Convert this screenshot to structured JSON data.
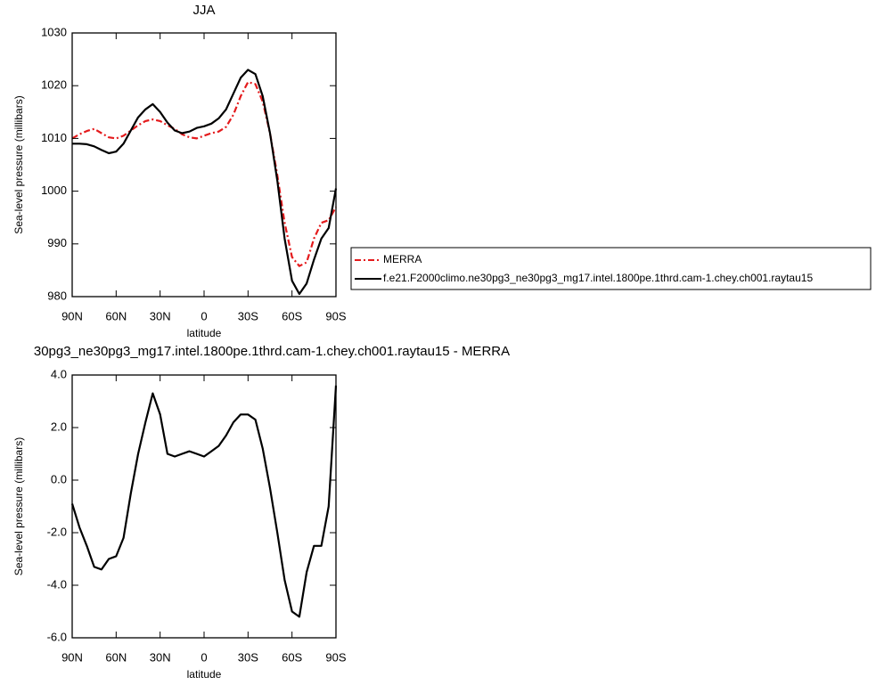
{
  "chart_data": [
    {
      "type": "line",
      "title": "JJA",
      "ylabel": "Sea-level pressure (millibars)",
      "xlabel": "latitude",
      "xlim": [
        90,
        -90
      ],
      "xticks": [
        {
          "value": 90,
          "label": "90N"
        },
        {
          "value": 60,
          "label": "60N"
        },
        {
          "value": 30,
          "label": "30N"
        },
        0,
        {
          "value": -30,
          "label": "30S"
        },
        {
          "value": -60,
          "label": "60S"
        },
        {
          "value": -90,
          "label": "90S"
        }
      ],
      "ylim": [
        980,
        1030
      ],
      "yticks": [
        980,
        990,
        1000,
        1010,
        1020,
        1030
      ],
      "legend": "right",
      "x": [
        90,
        85,
        80,
        75,
        70,
        65,
        60,
        55,
        50,
        45,
        40,
        35,
        30,
        25,
        20,
        15,
        10,
        5,
        0,
        -5,
        -10,
        -15,
        -20,
        -25,
        -30,
        -35,
        -40,
        -45,
        -50,
        -55,
        -60,
        -65,
        -70,
        -75,
        -80,
        -85,
        -90
      ],
      "series": [
        {
          "name": "MERRA",
          "color": "#e41a1c",
          "line_style": "dashed",
          "values": [
            1010,
            1010.8,
            1011.4,
            1011.8,
            1011,
            1010.2,
            1010,
            1010.5,
            1011.5,
            1012.5,
            1013.3,
            1013.6,
            1013.3,
            1012.5,
            1011.8,
            1010.8,
            1010.2,
            1010,
            1010.5,
            1011,
            1011.3,
            1012.2,
            1014.5,
            1018,
            1020.7,
            1020.3,
            1017,
            1011,
            1003,
            994,
            987.5,
            985.8,
            986.5,
            991,
            994,
            994.5,
            997
          ]
        },
        {
          "name": "f.e21.F2000climo.ne30pg3_ne30pg3_mg17.intel.1800pe.1thrd.cam-1.chey.ch001.raytau15",
          "color": "#000000",
          "line_style": "solid",
          "values": [
            1009,
            1009,
            1008.9,
            1008.5,
            1007.8,
            1007.2,
            1007.5,
            1009,
            1011.5,
            1014,
            1015.5,
            1016.5,
            1015,
            1013,
            1011.5,
            1011,
            1011.3,
            1012,
            1012.3,
            1012.8,
            1013.8,
            1015.5,
            1018.5,
            1021.5,
            1023,
            1022.2,
            1018,
            1011,
            1002,
            991,
            983,
            980.5,
            982.5,
            987,
            991,
            993,
            1000.5
          ]
        }
      ]
    },
    {
      "type": "line",
      "title": "30pg3_ne30pg3_mg17.intel.1800pe.1thrd.cam-1.chey.ch001.raytau15 - MERRA",
      "ylabel": "Sea-level pressure (millibars)",
      "xlabel": "latitude",
      "xlim": [
        90,
        -90
      ],
      "xticks": [
        {
          "value": 90,
          "label": "90N"
        },
        {
          "value": 60,
          "label": "60N"
        },
        {
          "value": 30,
          "label": "30N"
        },
        0,
        {
          "value": -30,
          "label": "30S"
        },
        {
          "value": -60,
          "label": "60S"
        },
        {
          "value": -90,
          "label": "90S"
        }
      ],
      "ylim": [
        -6,
        4
      ],
      "yticks": [
        {
          "value": -6,
          "label": "-6.0"
        },
        {
          "value": -4,
          "label": "-4.0"
        },
        {
          "value": -2,
          "label": "-2.0"
        },
        {
          "value": 0,
          "label": "0.0"
        },
        {
          "value": 2,
          "label": "2.0"
        },
        {
          "value": 4,
          "label": "4.0"
        }
      ],
      "x": [
        90,
        85,
        80,
        75,
        70,
        65,
        60,
        55,
        50,
        45,
        40,
        35,
        30,
        25,
        20,
        15,
        10,
        5,
        0,
        -5,
        -10,
        -15,
        -20,
        -25,
        -30,
        -35,
        -40,
        -45,
        -50,
        -55,
        -60,
        -65,
        -70,
        -75,
        -80,
        -85,
        -90
      ],
      "series": [
        {
          "color": "#000000",
          "line_style": "solid",
          "values": [
            -0.9,
            -1.8,
            -2.5,
            -3.3,
            -3.4,
            -3.0,
            -2.9,
            -2.2,
            -0.5,
            1.0,
            2.2,
            3.3,
            2.5,
            1.0,
            0.9,
            1.0,
            1.1,
            1.0,
            0.9,
            1.1,
            1.3,
            1.7,
            2.2,
            2.5,
            2.5,
            2.3,
            1.2,
            -0.3,
            -2.0,
            -3.8,
            -5.0,
            -5.2,
            -3.5,
            -2.5,
            -2.5,
            -1.0,
            3.6
          ]
        }
      ]
    }
  ]
}
